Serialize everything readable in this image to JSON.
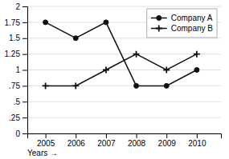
{
  "chart_data": {
    "type": "line",
    "x": [
      2005,
      2006,
      2007,
      2008,
      2009,
      2010
    ],
    "series": [
      {
        "name": "Company A",
        "color": "#111111",
        "marker": "circle",
        "values": [
          1.75,
          1.5,
          1.75,
          0.75,
          0.75,
          1.0
        ]
      },
      {
        "name": "Company B",
        "color": "#111111",
        "marker": "plus",
        "values": [
          0.75,
          0.75,
          1.0,
          1.25,
          1.0,
          1.25
        ]
      }
    ],
    "xlabel": "Years →",
    "xlim": [
      2004.4,
      2010.8
    ],
    "xticks": [
      2005,
      2006,
      2007,
      2008,
      2009,
      2010
    ],
    "ylim": [
      0,
      2
    ],
    "yticks": [
      0,
      {
        "value": 0.25,
        "label": ".25"
      },
      {
        "value": 0.5,
        "label": ".5"
      },
      {
        "value": 0.75,
        "label": ".75"
      },
      1,
      1.25,
      1.5,
      1.75,
      2
    ],
    "grid": "y",
    "legend": "upper right"
  }
}
